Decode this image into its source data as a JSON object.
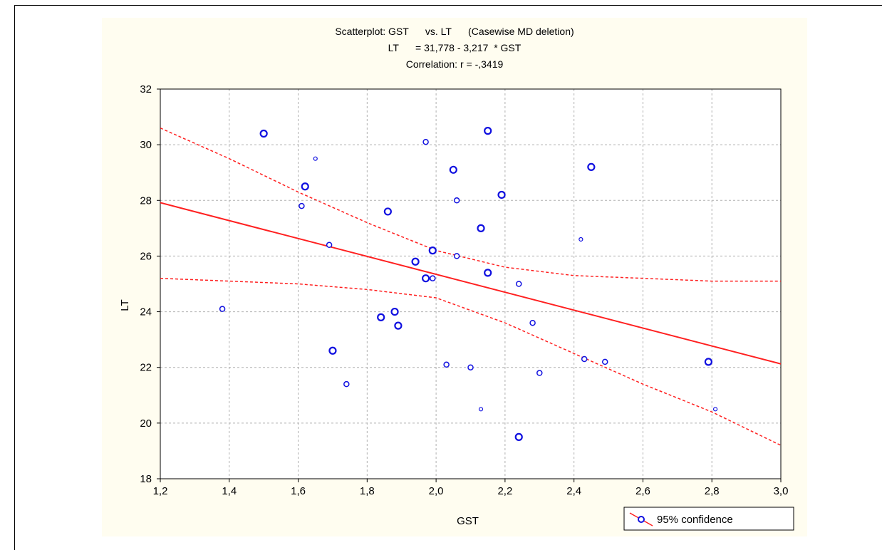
{
  "chart_data": {
    "type": "scatter",
    "title_lines": [
      "Scatterplot: GST      vs. LT      (Casewise MD deletion)",
      "LT      = 31,778 - 3,217  * GST",
      "Correlation: r = -,3419"
    ],
    "xlabel": "GST",
    "ylabel": "LT",
    "xlim": [
      1.2,
      3.0
    ],
    "ylim": [
      18,
      32
    ],
    "xticks": [
      1.2,
      1.4,
      1.6,
      1.8,
      2.0,
      2.2,
      2.4,
      2.6,
      2.8,
      3.0
    ],
    "xtick_labels": [
      "1,2",
      "1,4",
      "1,6",
      "1,8",
      "2,0",
      "2,2",
      "2,4",
      "2,6",
      "2,8",
      "3,0"
    ],
    "yticks": [
      18,
      20,
      22,
      24,
      26,
      28,
      30,
      32
    ],
    "ytick_labels": [
      "18",
      "20",
      "22",
      "24",
      "26",
      "28",
      "30",
      "32"
    ],
    "grid": true,
    "legend_placement": "bottom-right",
    "legend_label": "95% confidence",
    "regression": {
      "intercept": 31.778,
      "slope": -3.217
    },
    "confidence_band": {
      "x": [
        1.2,
        1.4,
        1.6,
        1.8,
        2.0,
        2.2,
        2.4,
        2.6,
        2.8,
        3.0
      ],
      "upper": [
        30.6,
        29.5,
        28.3,
        27.2,
        26.2,
        25.6,
        25.3,
        25.2,
        25.1,
        25.1
      ],
      "lower": [
        25.2,
        25.1,
        25.0,
        24.8,
        24.5,
        23.6,
        22.5,
        21.4,
        20.4,
        19.2
      ]
    },
    "points": [
      {
        "x": 1.38,
        "y": 24.1,
        "size": "small"
      },
      {
        "x": 1.5,
        "y": 30.4,
        "size": "large"
      },
      {
        "x": 1.61,
        "y": 27.8,
        "size": "small"
      },
      {
        "x": 1.62,
        "y": 28.5,
        "size": "large"
      },
      {
        "x": 1.65,
        "y": 29.5,
        "size": "tiny"
      },
      {
        "x": 1.69,
        "y": 26.4,
        "size": "small"
      },
      {
        "x": 1.7,
        "y": 22.6,
        "size": "large"
      },
      {
        "x": 1.74,
        "y": 21.4,
        "size": "small"
      },
      {
        "x": 1.84,
        "y": 23.8,
        "size": "large"
      },
      {
        "x": 1.86,
        "y": 27.6,
        "size": "large"
      },
      {
        "x": 1.88,
        "y": 24.0,
        "size": "large"
      },
      {
        "x": 1.89,
        "y": 23.5,
        "size": "large"
      },
      {
        "x": 1.94,
        "y": 25.8,
        "size": "large"
      },
      {
        "x": 1.97,
        "y": 25.2,
        "size": "large"
      },
      {
        "x": 1.97,
        "y": 30.1,
        "size": "small"
      },
      {
        "x": 1.99,
        "y": 26.2,
        "size": "large"
      },
      {
        "x": 1.99,
        "y": 25.2,
        "size": "small"
      },
      {
        "x": 2.03,
        "y": 22.1,
        "size": "small"
      },
      {
        "x": 2.05,
        "y": 29.1,
        "size": "large"
      },
      {
        "x": 2.06,
        "y": 28.0,
        "size": "small"
      },
      {
        "x": 2.06,
        "y": 26.0,
        "size": "small"
      },
      {
        "x": 2.1,
        "y": 22.0,
        "size": "small"
      },
      {
        "x": 2.13,
        "y": 27.0,
        "size": "large"
      },
      {
        "x": 2.13,
        "y": 20.5,
        "size": "tiny"
      },
      {
        "x": 2.15,
        "y": 30.5,
        "size": "large"
      },
      {
        "x": 2.15,
        "y": 25.4,
        "size": "large"
      },
      {
        "x": 2.19,
        "y": 28.2,
        "size": "large"
      },
      {
        "x": 2.24,
        "y": 25.0,
        "size": "small"
      },
      {
        "x": 2.24,
        "y": 19.5,
        "size": "large"
      },
      {
        "x": 2.28,
        "y": 23.6,
        "size": "small"
      },
      {
        "x": 2.3,
        "y": 21.8,
        "size": "small"
      },
      {
        "x": 2.42,
        "y": 26.6,
        "size": "tiny"
      },
      {
        "x": 2.43,
        "y": 22.3,
        "size": "small"
      },
      {
        "x": 2.45,
        "y": 29.2,
        "size": "large"
      },
      {
        "x": 2.49,
        "y": 22.2,
        "size": "small"
      },
      {
        "x": 2.79,
        "y": 22.2,
        "size": "large"
      },
      {
        "x": 2.81,
        "y": 20.5,
        "size": "tiny"
      }
    ],
    "colors": {
      "points": "#1010e0",
      "regression": "#ff2020",
      "grid": "#b0b0b0",
      "background": "#fffdf0"
    }
  }
}
